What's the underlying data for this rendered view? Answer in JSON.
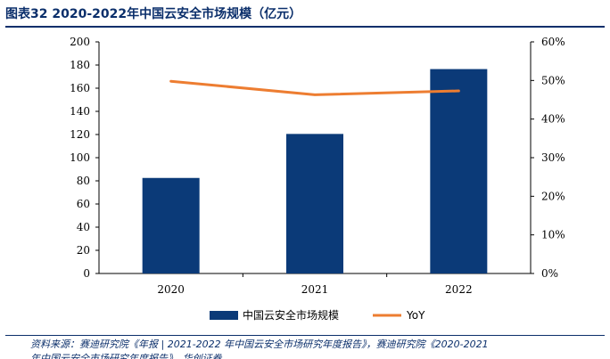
{
  "figure": {
    "title": "图表32  2020-2022年中国云安全市场规模（亿元）",
    "source_line1": "资料来源：赛迪研究院《年报 | 2021-2022 年中国云安全市场研究年度报告》，赛迪研究院《2020-2021",
    "source_line2": "年中国云安全市场研究年度报告》，华创证券"
  },
  "colors": {
    "bar": "#0b3a78",
    "line": "#ed7d31",
    "axis": "#000000",
    "title": "#0b2f6b"
  },
  "chart_data": {
    "type": "bar",
    "categories": [
      "2020",
      "2021",
      "2022"
    ],
    "series": [
      {
        "name": "中国云安全市场规模",
        "type": "bar",
        "axis": "left",
        "values": [
          82.5,
          120.5,
          176.5
        ]
      },
      {
        "name": "YoY",
        "type": "line",
        "axis": "right",
        "values": [
          49.8,
          46.3,
          47.3
        ],
        "unit": "%"
      }
    ],
    "y_left": {
      "min": 0,
      "max": 200,
      "ticks": [
        "0",
        "20",
        "40",
        "60",
        "80",
        "100",
        "120",
        "140",
        "160",
        "180",
        "200"
      ]
    },
    "y_right": {
      "min": 0,
      "max": 60,
      "ticks": [
        "0%",
        "10%",
        "20%",
        "30%",
        "40%",
        "50%",
        "60%"
      ]
    },
    "legend_position": "bottom",
    "grid": false
  }
}
